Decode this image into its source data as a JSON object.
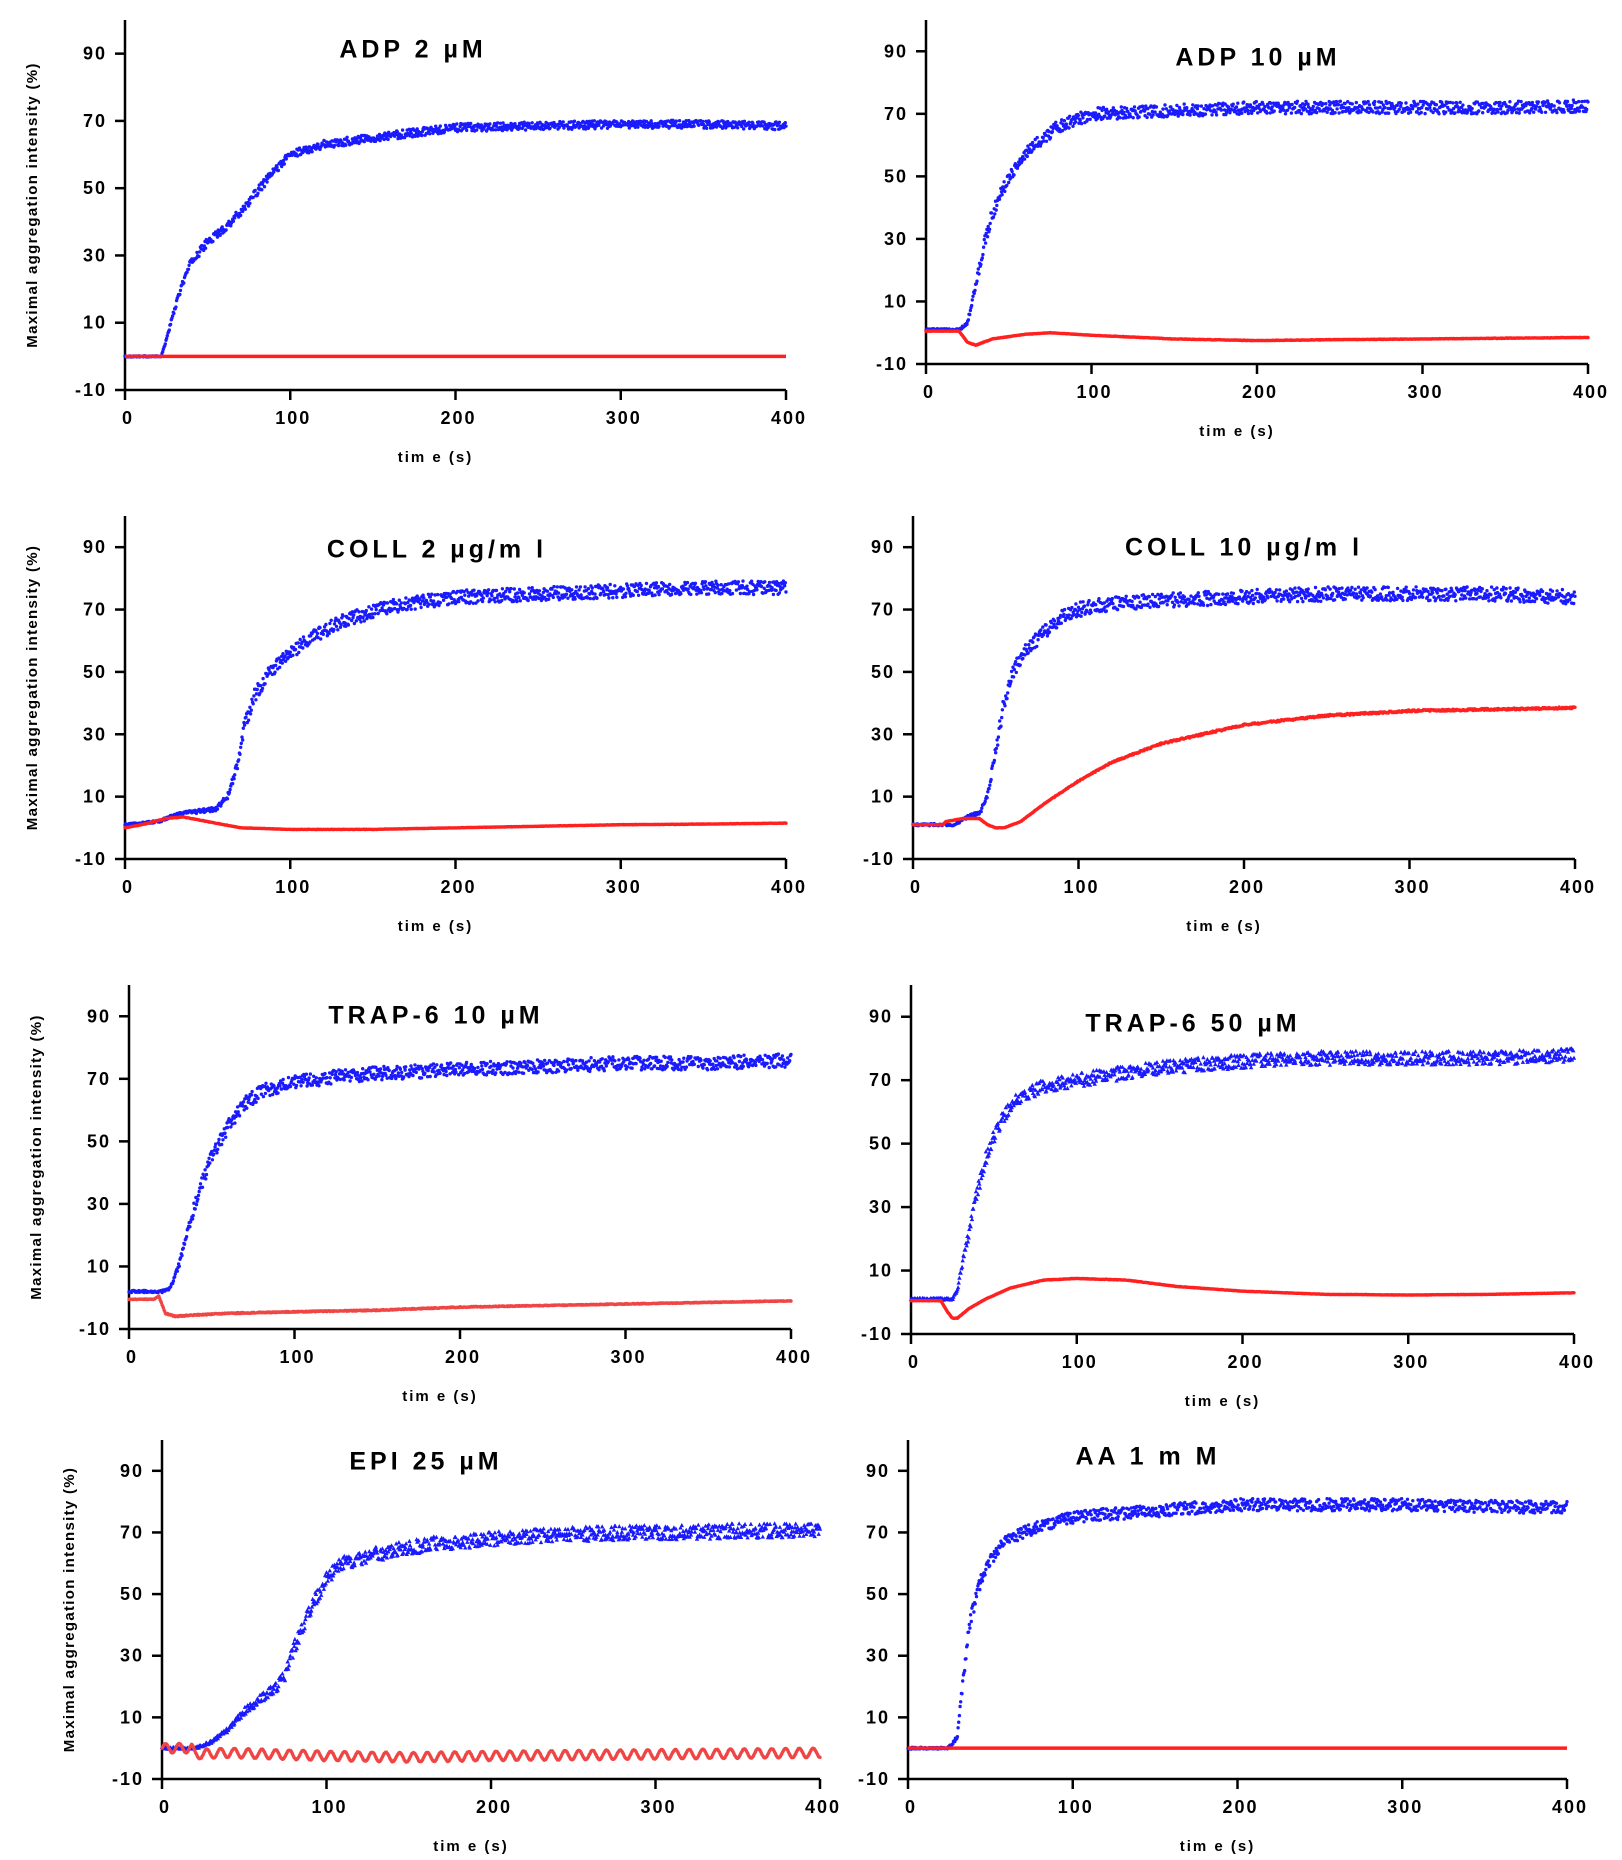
{
  "figure": {
    "colors": {
      "blue": "#1a1aff",
      "red": "#ff2020",
      "red_light": "#f04545"
    },
    "chart_data": [
      {
        "type": "scatter",
        "title": "ADP 2 µM",
        "xlabel": "tim e (s)",
        "ylabel": "Maximal aggregation intensity (%)",
        "xlim": [
          0,
          400
        ],
        "ylim": [
          -10,
          100
        ],
        "xticks": [
          0,
          100,
          200,
          300,
          400
        ],
        "yticks": [
          -10,
          10,
          30,
          50,
          70,
          90
        ],
        "series": [
          {
            "name": "blue",
            "color": "#1a1aff",
            "marker": "dot",
            "x": [
              0,
              22,
              25,
              30,
              35,
              40,
              50,
              60,
              70,
              80,
              90,
              100,
              120,
              150,
              200,
              250,
              300,
              350,
              400
            ],
            "y": [
              0,
              0,
              5,
              14,
              22,
              28,
              34,
              38,
              43,
              49,
              55,
              60,
              63,
              65,
              68,
              68.5,
              69,
              69,
              68.5
            ],
            "noise": 1.2
          },
          {
            "name": "red",
            "color": "#ff2020",
            "marker": "line",
            "x": [
              0,
              400
            ],
            "y": [
              0,
              0
            ],
            "noise": 0
          }
        ]
      },
      {
        "type": "scatter",
        "title": "ADP 10 µM",
        "xlabel": "tim e (s)",
        "ylabel": "",
        "xlim": [
          0,
          400
        ],
        "ylim": [
          -10,
          100
        ],
        "xticks": [
          0,
          100,
          200,
          300,
          400
        ],
        "yticks": [
          -10,
          10,
          30,
          50,
          70,
          90
        ],
        "series": [
          {
            "name": "blue",
            "color": "#1a1aff",
            "marker": "dot",
            "x": [
              0,
              20,
              25,
              30,
              35,
              40,
              50,
              60,
              70,
              80,
              100,
              150,
              200,
              250,
              300,
              350,
              400
            ],
            "y": [
              1,
              1,
              3,
              15,
              28,
              38,
              50,
              57,
              62,
              66,
              70,
              71,
              72,
              72,
              72,
              72,
              72.5
            ],
            "noise": 2.0
          },
          {
            "name": "red",
            "color": "#ff2020",
            "marker": "dot",
            "x": [
              0,
              20,
              25,
              30,
              40,
              60,
              75,
              100,
              150,
              200,
              250,
              300,
              400
            ],
            "y": [
              0.5,
              0.5,
              -3,
              -4,
              -2,
              -0.5,
              0,
              -0.8,
              -2,
              -2.5,
              -2.2,
              -2,
              -1.5
            ],
            "noise": 0.3
          }
        ]
      },
      {
        "type": "scatter",
        "title": "COLL 2 µg/m l",
        "xlabel": "tim e (s)",
        "ylabel": "Maximal aggregation intensity (%)",
        "xlim": [
          0,
          400
        ],
        "ylim": [
          -10,
          100
        ],
        "xticks": [
          0,
          100,
          200,
          300,
          400
        ],
        "yticks": [
          -10,
          10,
          30,
          50,
          70,
          90
        ],
        "series": [
          {
            "name": "blue",
            "color": "#1a1aff",
            "marker": "dot",
            "x": [
              0,
              20,
              30,
              40,
              55,
              62,
              68,
              72,
              78,
              85,
              95,
              110,
              130,
              160,
              200,
              250,
              300,
              350,
              400
            ],
            "y": [
              1,
              2,
              4,
              5,
              6,
              10,
              20,
              32,
              42,
              48,
              54,
              60,
              66,
              71,
              74,
              75,
              76,
              77,
              77
            ],
            "noise": 2.2
          },
          {
            "name": "red",
            "color": "#ff2020",
            "marker": "dot",
            "x": [
              0,
              10,
              25,
              35,
              50,
              70,
              100,
              150,
              200,
              250,
              300,
              350,
              400
            ],
            "y": [
              0,
              1,
              3,
              3.5,
              2,
              0,
              -0.5,
              -0.5,
              0,
              0.5,
              1,
              1.2,
              1.5
            ],
            "noise": 0.3
          }
        ]
      },
      {
        "type": "scatter",
        "title": "COLL 10 µg/m l",
        "xlabel": "tim e (s)",
        "ylabel": "",
        "xlim": [
          0,
          400
        ],
        "ylim": [
          -10,
          100
        ],
        "xticks": [
          0,
          100,
          200,
          300,
          400
        ],
        "yticks": [
          -10,
          10,
          30,
          50,
          70,
          90
        ],
        "series": [
          {
            "name": "blue",
            "color": "#1a1aff",
            "marker": "dot",
            "x": [
              0,
              25,
              35,
              40,
              45,
              50,
              55,
              60,
              70,
              80,
              90,
              100,
              120,
              150,
              200,
              250,
              300,
              350,
              400
            ],
            "y": [
              1,
              1,
              4,
              4.5,
              10,
              25,
              40,
              50,
              58,
              63,
              68,
              70,
              72,
              73,
              74,
              75,
              75,
              75,
              74
            ],
            "noise": 2.3
          },
          {
            "name": "red",
            "color": "#ff2020",
            "marker": "dot",
            "x": [
              0,
              18,
              20,
              30,
              40,
              45,
              50,
              55,
              65,
              80,
              100,
              120,
              150,
              200,
              250,
              300,
              350,
              400
            ],
            "y": [
              1,
              1,
              2,
              3,
              3,
              1,
              0,
              0,
              2,
              8,
              15,
              21,
              27,
              33,
              36,
              37.5,
              38,
              38.5
            ],
            "noise": 0.3
          }
        ]
      },
      {
        "type": "scatter",
        "title": "TRAP-6 10 µM",
        "xlabel": "tim e (s)",
        "ylabel": "Maximal aggregation intensity (%)",
        "xlim": [
          0,
          400
        ],
        "ylim": [
          -10,
          100
        ],
        "xticks": [
          0,
          100,
          200,
          300,
          400
        ],
        "yticks": [
          -10,
          10,
          30,
          50,
          70,
          90
        ],
        "series": [
          {
            "name": "blue",
            "color": "#1a1aff",
            "marker": "dot",
            "x": [
              0,
              20,
              25,
              30,
              35,
              40,
              45,
              50,
              60,
              70,
              80,
              100,
              130,
              160,
              200,
              250,
              300,
              350,
              400
            ],
            "y": [
              2,
              2,
              3,
              10,
              20,
              30,
              38,
              45,
              55,
              62,
              66,
              69,
              71,
              72,
              73,
              74,
              75,
              75,
              76
            ],
            "noise": 2.2
          },
          {
            "name": "red",
            "color": "#f04545",
            "marker": "dot",
            "x": [
              0,
              15,
              18,
              22,
              28,
              40,
              60,
              100,
              150,
              200,
              250,
              300,
              350,
              400
            ],
            "y": [
              -0.5,
              -0.5,
              0.5,
              -5,
              -6,
              -5.5,
              -5,
              -4.5,
              -4,
              -3,
              -2.5,
              -2,
              -1.5,
              -1
            ],
            "noise": 0.6
          }
        ]
      },
      {
        "type": "scatter",
        "title": "TRAP-6 50 µM",
        "xlabel": "tim e (s)",
        "ylabel": "",
        "xlim": [
          0,
          400
        ],
        "ylim": [
          -10,
          100
        ],
        "xticks": [
          0,
          100,
          200,
          300,
          400
        ],
        "yticks": [
          -10,
          10,
          30,
          50,
          70,
          90
        ],
        "series": [
          {
            "name": "blue",
            "color": "#1a1aff",
            "marker": "triangle",
            "x": [
              0,
              25,
              28,
              30,
              35,
              40,
              45,
              50,
              55,
              60,
              70,
              80,
              100,
              150,
              200,
              250,
              300,
              350,
              400
            ],
            "y": [
              1,
              1,
              4,
              10,
              22,
              35,
              45,
              52,
              58,
              62,
              66,
              68,
              70,
              74,
              76,
              77,
              77,
              77,
              78
            ],
            "noise": 2.2
          },
          {
            "name": "red",
            "color": "#ff2020",
            "marker": "dot",
            "x": [
              0,
              18,
              22,
              25,
              28,
              35,
              45,
              60,
              80,
              100,
              130,
              160,
              200,
              250,
              300,
              350,
              400
            ],
            "y": [
              0.5,
              0.5,
              -3,
              -5,
              -5,
              -2,
              1,
              4.5,
              7,
              7.5,
              7,
              5,
              3.5,
              2.5,
              2.3,
              2.5,
              3
            ],
            "noise": 0.2
          }
        ]
      },
      {
        "type": "scatter",
        "title": "EPI 25 µM",
        "xlabel": "tim e (s)",
        "ylabel": "Maximal aggregation intensity (%)",
        "xlim": [
          0,
          400
        ],
        "ylim": [
          -10,
          100
        ],
        "xticks": [
          0,
          100,
          200,
          300,
          400
        ],
        "yticks": [
          -10,
          10,
          30,
          50,
          70,
          90
        ],
        "series": [
          {
            "name": "blue",
            "color": "#1a1aff",
            "marker": "triangle",
            "x": [
              0,
              20,
              30,
              40,
              50,
              60,
              70,
              75,
              80,
              90,
              100,
              110,
              130,
              160,
              200,
              250,
              300,
              350,
              400
            ],
            "y": [
              0,
              0,
              2,
              6,
              12,
              16,
              20,
              24,
              32,
              45,
              55,
              60,
              63,
              66,
              68,
              69.5,
              70,
              70.5,
              70.5
            ],
            "noise": 2.4
          },
          {
            "name": "red",
            "color": "#f04545",
            "marker": "dot",
            "x": [
              0,
              18,
              20,
              40,
              100,
              150,
              200,
              300,
              400
            ],
            "y": [
              0,
              0,
              -2,
              -1.5,
              -2.5,
              -3,
              -2.5,
              -2,
              -1.5
            ],
            "noise": 0.4,
            "oscillation": 1.5
          }
        ]
      },
      {
        "type": "scatter",
        "title": "AA 1 m M",
        "xlabel": "tim e (s)",
        "ylabel": "",
        "xlim": [
          0,
          400
        ],
        "ylim": [
          -10,
          100
        ],
        "xticks": [
          0,
          100,
          200,
          300,
          400
        ],
        "yticks": [
          -10,
          10,
          30,
          50,
          70,
          90
        ],
        "series": [
          {
            "name": "blue",
            "color": "#1a1aff",
            "marker": "dot",
            "x": [
              0,
              24,
              28,
              30,
              32,
              35,
              38,
              42,
              45,
              50,
              55,
              60,
              70,
              80,
              100,
              150,
              200,
              250,
              300,
              350,
              400
            ],
            "y": [
              0,
              0,
              2,
              4,
              15,
              30,
              42,
              50,
              56,
              61,
              65,
              67,
              70,
              72,
              75,
              77,
              79,
              79,
              79,
              78.5,
              78
            ],
            "noise": 2.0
          },
          {
            "name": "red",
            "color": "#ff2020",
            "marker": "line",
            "x": [
              0,
              400
            ],
            "y": [
              0,
              0
            ],
            "noise": 0
          }
        ]
      }
    ]
  }
}
